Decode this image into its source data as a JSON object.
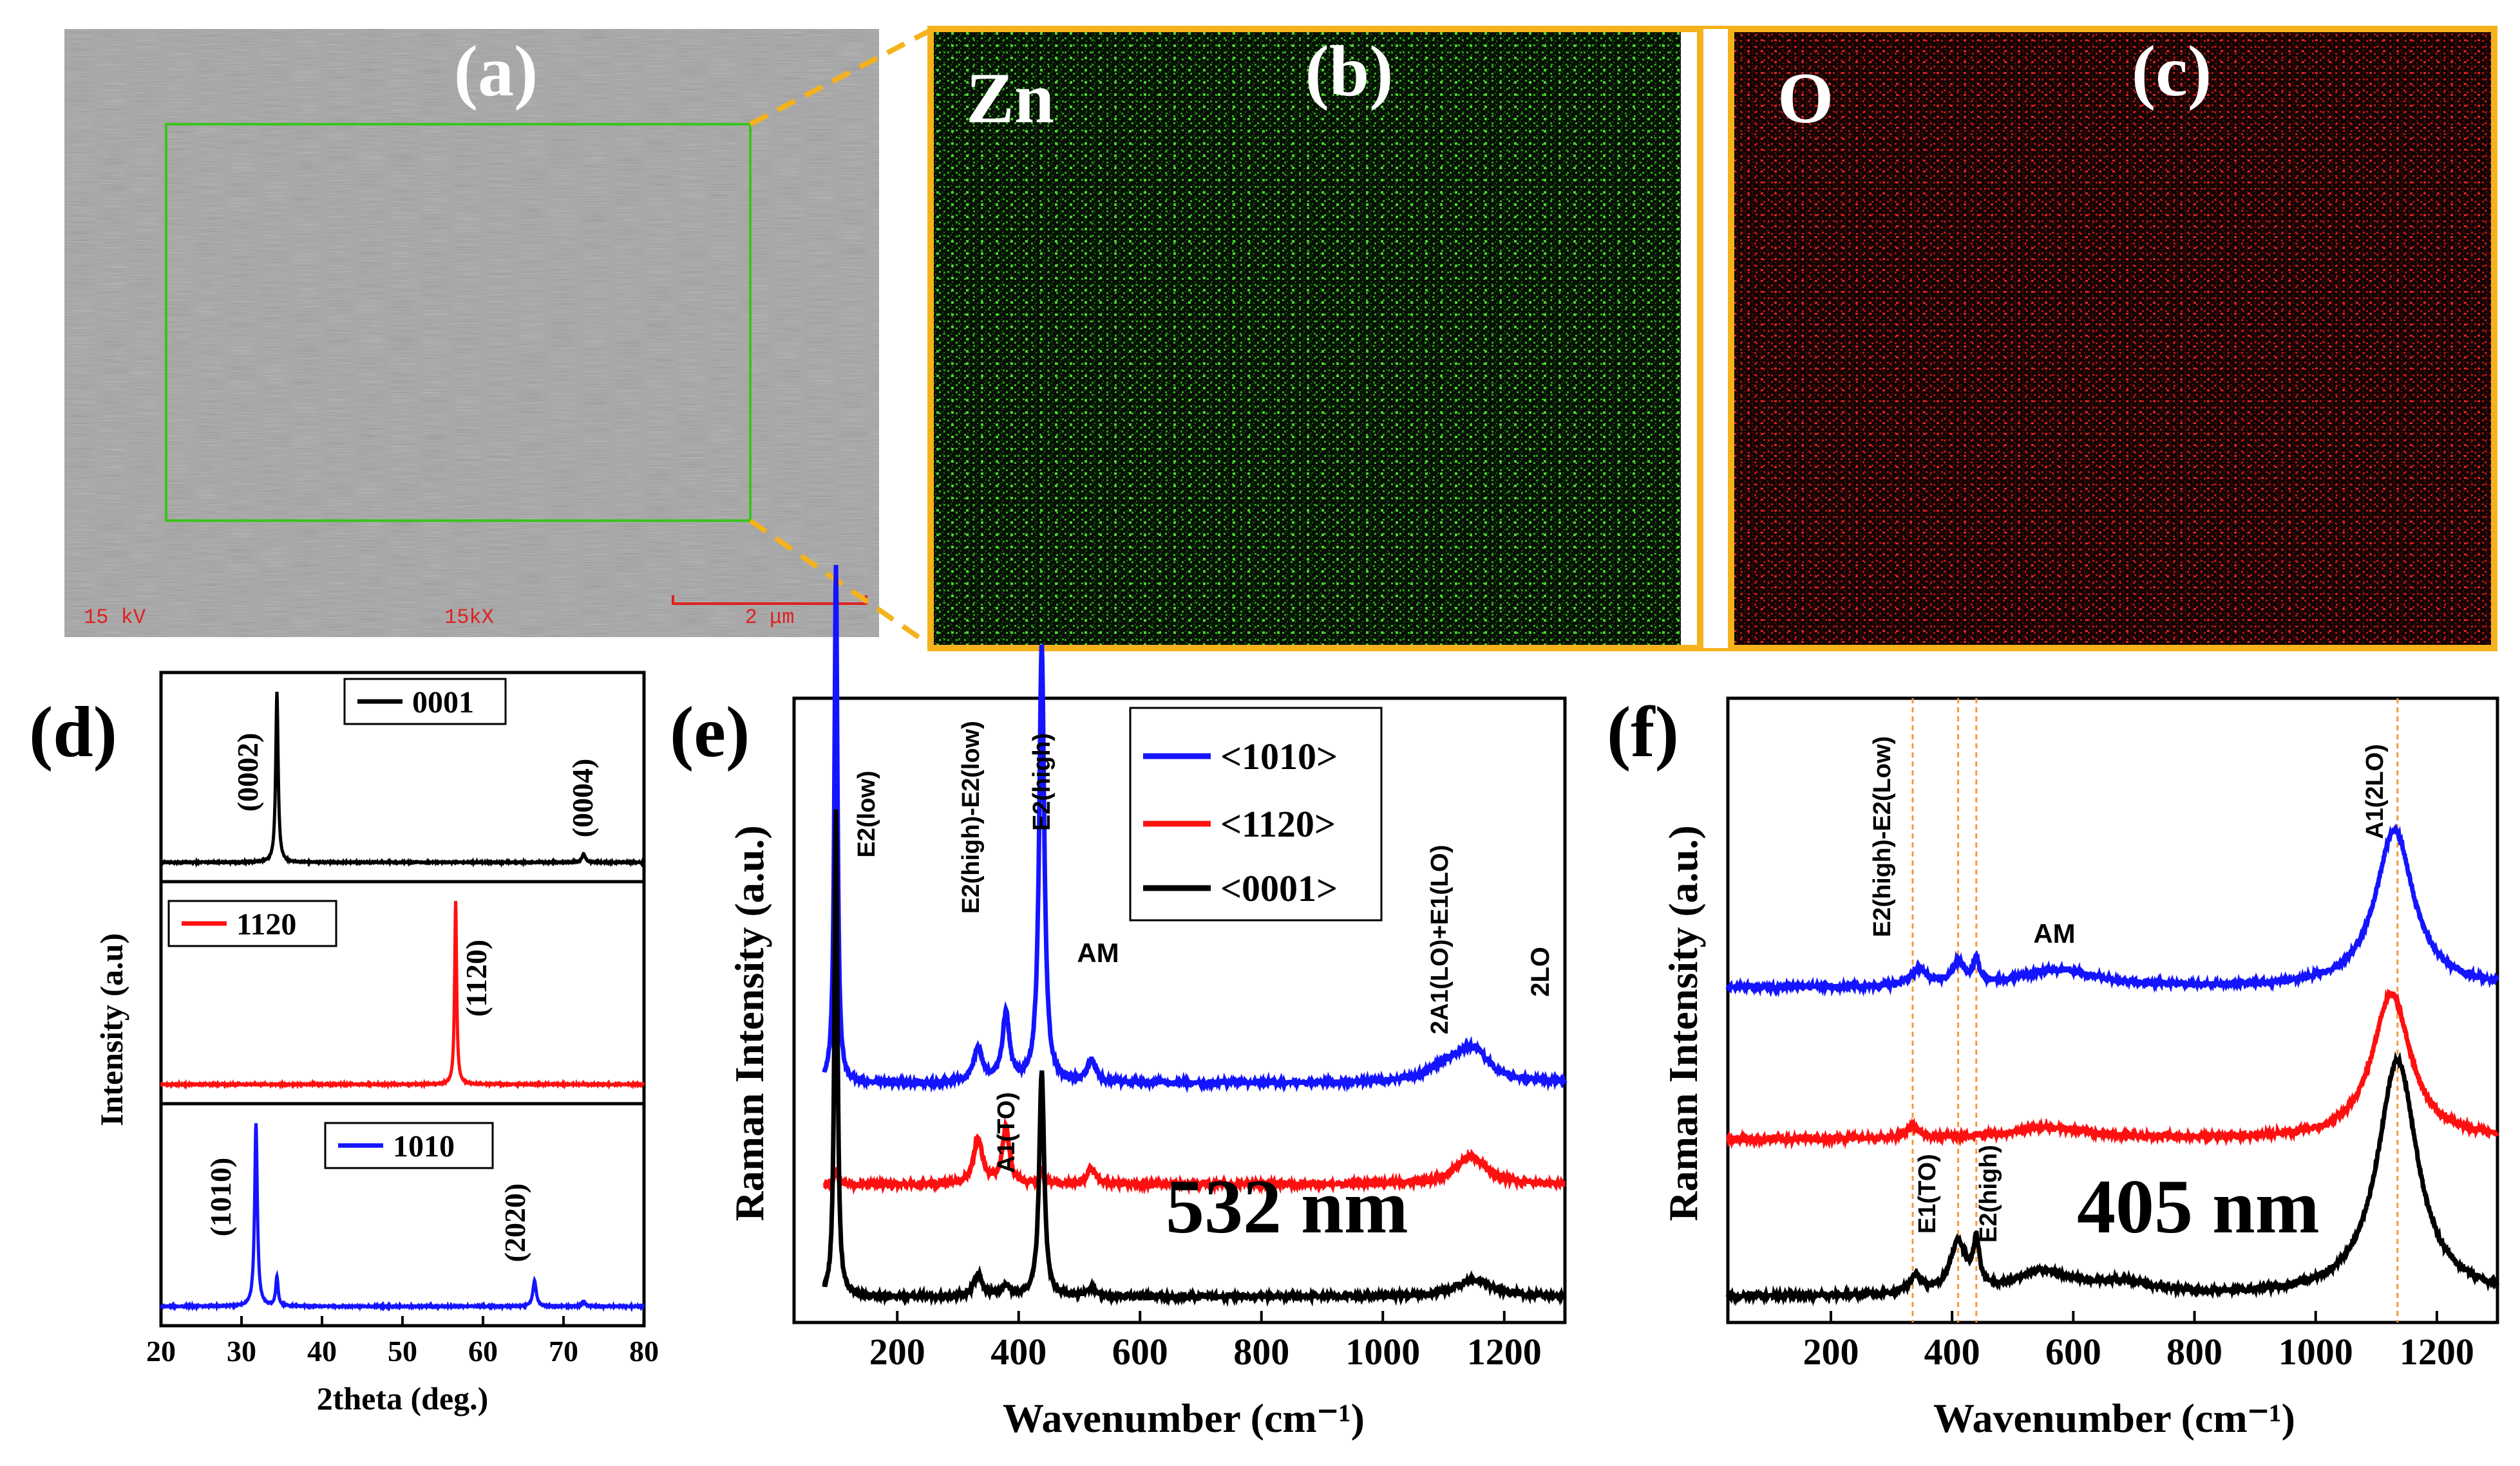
{
  "colors": {
    "frame_gold": "#f4b21c",
    "green_box": "#39c41e",
    "sem_red": "#e02020",
    "blue": "#1414ff",
    "red": "#ff1010",
    "black": "#000000",
    "guide": "#f59a38"
  },
  "panel_a": {
    "label": "(a)",
    "voltage": "15 kV",
    "magnification": "15kX",
    "scalebar": "2 μm"
  },
  "panel_b": {
    "label": "(b)",
    "element": "Zn"
  },
  "panel_c": {
    "label": "(c)",
    "element": "O"
  },
  "chart_data": [
    {
      "id": "d",
      "type": "line",
      "panel_label": "(d)",
      "xlabel": "2theta (deg.)",
      "ylabel": "Intensity (a.u)",
      "xlim": [
        20,
        80
      ],
      "xticks": [
        "20",
        "30",
        "40",
        "50",
        "60",
        "70",
        "80"
      ],
      "subplots": [
        {
          "name": "0001",
          "color": "#000000",
          "peaks": [
            {
              "x": 34.4,
              "h": 1.0,
              "w": 0.18
            },
            {
              "x": 72.5,
              "h": 0.05,
              "w": 0.25
            }
          ],
          "annotations": [
            "(0002)",
            "(0004)"
          ]
        },
        {
          "name": "1120",
          "color": "#ff1010",
          "peaks": [
            {
              "x": 56.6,
              "h": 1.0,
              "w": 0.15
            }
          ],
          "annotations": [
            "(1120)"
          ]
        },
        {
          "name": "1010",
          "color": "#1414ff",
          "peaks": [
            {
              "x": 31.8,
              "h": 1.0,
              "w": 0.2
            },
            {
              "x": 34.4,
              "h": 0.16,
              "w": 0.18
            },
            {
              "x": 66.4,
              "h": 0.14,
              "w": 0.25
            },
            {
              "x": 72.5,
              "h": 0.03,
              "w": 0.2
            }
          ],
          "annotations": [
            "(1010)",
            "(2020)"
          ]
        }
      ]
    },
    {
      "id": "e",
      "type": "line",
      "panel_label": "(e)",
      "xlabel": "Wavenumber (cm⁻¹)",
      "ylabel": "Raman Intensity (a.u.)",
      "xlim": [
        30,
        1300
      ],
      "xticks": [
        "200",
        "400",
        "600",
        "800",
        "1000",
        "1200"
      ],
      "wavelength": "532 nm",
      "legend": [
        "<1010>",
        "<1120>",
        "<0001>"
      ],
      "annotations": [
        "E2(low)",
        "E2(high)-E2(low)",
        "E2(high)",
        "AM",
        "2A1(LO)+E1(LO)",
        "2LO",
        "A1(TO)"
      ],
      "series": [
        {
          "name": "<1010>",
          "color": "#1414ff",
          "baseline": 0.38,
          "peaks": [
            {
              "x": 99,
              "h": 0.92,
              "w": 3
            },
            {
              "x": 333,
              "h": 0.06,
              "w": 9
            },
            {
              "x": 379,
              "h": 0.12,
              "w": 7
            },
            {
              "x": 438,
              "h": 0.78,
              "w": 5
            },
            {
              "x": 520,
              "h": 0.04,
              "w": 8
            },
            {
              "x": 1110,
              "h": 0.03,
              "w": 40
            },
            {
              "x": 1150,
              "h": 0.05,
              "w": 30
            }
          ]
        },
        {
          "name": "<1120>",
          "color": "#ff1010",
          "baseline": 0.2,
          "peaks": [
            {
              "x": 99,
              "h": 0.03,
              "w": 3
            },
            {
              "x": 333,
              "h": 0.08,
              "w": 9
            },
            {
              "x": 379,
              "h": 0.1,
              "w": 7
            },
            {
              "x": 438,
              "h": 0.02,
              "w": 5
            },
            {
              "x": 520,
              "h": 0.03,
              "w": 8
            },
            {
              "x": 1145,
              "h": 0.05,
              "w": 30
            }
          ]
        },
        {
          "name": "<0001>",
          "color": "#000000",
          "baseline": 0.0,
          "peaks": [
            {
              "x": 99,
              "h": 0.87,
              "w": 3
            },
            {
              "x": 333,
              "h": 0.04,
              "w": 8
            },
            {
              "x": 379,
              "h": 0.02,
              "w": 7
            },
            {
              "x": 438,
              "h": 0.4,
              "w": 5
            },
            {
              "x": 520,
              "h": 0.015,
              "w": 8
            },
            {
              "x": 1150,
              "h": 0.03,
              "w": 35
            }
          ]
        }
      ]
    },
    {
      "id": "f",
      "type": "line",
      "panel_label": "(f)",
      "xlabel": "Wavenumber (cm⁻¹)",
      "ylabel": "Raman Intensity (a.u.)",
      "xlim": [
        30,
        1300
      ],
      "xticks": [
        "200",
        "400",
        "600",
        "800",
        "1000",
        "1200"
      ],
      "wavelength": "405 nm",
      "guides": [
        335,
        410,
        440,
        1135
      ],
      "annotations": [
        "E2(high)-E2(Low)",
        "AM",
        "A1(2LO)",
        "E1(TO)",
        "E2(high)"
      ],
      "series": [
        {
          "name": "blue",
          "color": "#1414ff",
          "baseline": 0.55,
          "peaks": [
            {
              "x": 345,
              "h": 0.03,
              "w": 15
            },
            {
              "x": 410,
              "h": 0.04,
              "w": 12
            },
            {
              "x": 440,
              "h": 0.04,
              "w": 6
            },
            {
              "x": 575,
              "h": 0.03,
              "w": 80
            },
            {
              "x": 1130,
              "h": 0.28,
              "w": 38
            }
          ]
        },
        {
          "name": "red",
          "color": "#ff1010",
          "baseline": 0.28,
          "peaks": [
            {
              "x": 335,
              "h": 0.02,
              "w": 12
            },
            {
              "x": 560,
              "h": 0.02,
              "w": 80
            },
            {
              "x": 1125,
              "h": 0.26,
              "w": 38
            }
          ]
        },
        {
          "name": "black",
          "color": "#000000",
          "baseline": 0.0,
          "peaks": [
            {
              "x": 340,
              "h": 0.03,
              "w": 12
            },
            {
              "x": 410,
              "h": 0.09,
              "w": 16
            },
            {
              "x": 440,
              "h": 0.08,
              "w": 6
            },
            {
              "x": 550,
              "h": 0.04,
              "w": 60
            },
            {
              "x": 680,
              "h": 0.02,
              "w": 60
            },
            {
              "x": 1135,
              "h": 0.42,
              "w": 40
            }
          ]
        }
      ]
    }
  ]
}
